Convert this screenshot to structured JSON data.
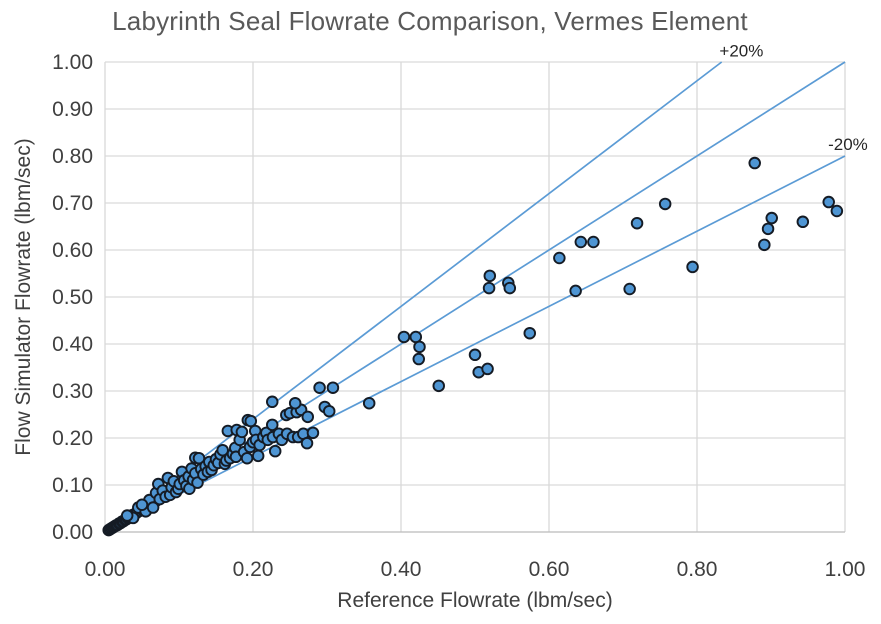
{
  "chart_data": {
    "type": "scatter",
    "title": "Labyrinth Seal Flowrate Comparison, Vermes Element",
    "xlabel": "Reference Flowrate (lbm/sec)",
    "ylabel": "Flow Simulator Flowrate (lbm/sec)",
    "xlim": [
      0.0,
      1.0
    ],
    "ylim": [
      0.0,
      1.0
    ],
    "xticks": [
      "0.00",
      "0.20",
      "0.40",
      "0.60",
      "0.80",
      "1.00"
    ],
    "yticks": [
      "0.00",
      "0.10",
      "0.20",
      "0.30",
      "0.40",
      "0.50",
      "0.60",
      "0.70",
      "0.80",
      "0.90",
      "1.00"
    ],
    "grid": true,
    "legend": "none",
    "colors": {
      "grid": "#d9d9d9",
      "axis": "#bfbfbf",
      "line": "#5b9bd5",
      "marker_fill": "#4e95d3",
      "marker_stroke": "#151b24",
      "tick_text": "#404040",
      "title_text": "#595959",
      "annotation_text": "#262626"
    },
    "reference_lines": [
      {
        "name": "plus-20pct",
        "slope": 1.2,
        "label": "+20%"
      },
      {
        "name": "one-to-one",
        "slope": 1.0,
        "label": ""
      },
      {
        "name": "minus-20pct",
        "slope": 0.8,
        "label": "-20%"
      }
    ],
    "annotations": [
      {
        "text": "+20%",
        "x": 0.86,
        "y": 1.012,
        "anchor": "middle"
      },
      {
        "text": "-20%",
        "x": 1.004,
        "y": 0.813,
        "anchor": "middle"
      }
    ],
    "series": [
      {
        "name": "flowrate-comparison",
        "points": [
          [
            0.005,
            0.004
          ],
          [
            0.007,
            0.006
          ],
          [
            0.009,
            0.008
          ],
          [
            0.011,
            0.01
          ],
          [
            0.013,
            0.012
          ],
          [
            0.015,
            0.014
          ],
          [
            0.017,
            0.015
          ],
          [
            0.019,
            0.018
          ],
          [
            0.021,
            0.019
          ],
          [
            0.023,
            0.022
          ],
          [
            0.025,
            0.023
          ],
          [
            0.027,
            0.026
          ],
          [
            0.029,
            0.027
          ],
          [
            0.031,
            0.03
          ],
          [
            0.033,
            0.031
          ],
          [
            0.035,
            0.034
          ],
          [
            0.037,
            0.036
          ],
          [
            0.039,
            0.037
          ],
          [
            0.042,
            0.04
          ],
          [
            0.044,
            0.043
          ],
          [
            0.047,
            0.045
          ],
          [
            0.05,
            0.048
          ],
          [
            0.053,
            0.051
          ],
          [
            0.056,
            0.054
          ],
          [
            0.059,
            0.057
          ],
          [
            0.062,
            0.059
          ],
          [
            0.065,
            0.062
          ],
          [
            0.068,
            0.065
          ],
          [
            0.045,
            0.052
          ],
          [
            0.055,
            0.044
          ],
          [
            0.06,
            0.068
          ],
          [
            0.038,
            0.03
          ],
          [
            0.03,
            0.035
          ],
          [
            0.05,
            0.058
          ],
          [
            0.065,
            0.052
          ],
          [
            0.069,
            0.083
          ],
          [
            0.072,
            0.102
          ],
          [
            0.074,
            0.07
          ],
          [
            0.078,
            0.088
          ],
          [
            0.082,
            0.075
          ],
          [
            0.085,
            0.115
          ],
          [
            0.088,
            0.079
          ],
          [
            0.09,
            0.095
          ],
          [
            0.093,
            0.108
          ],
          [
            0.096,
            0.085
          ],
          [
            0.099,
            0.092
          ],
          [
            0.101,
            0.102
          ],
          [
            0.104,
            0.128
          ],
          [
            0.107,
            0.11
          ],
          [
            0.11,
            0.098
          ],
          [
            0.113,
            0.118
          ],
          [
            0.114,
            0.092
          ],
          [
            0.117,
            0.135
          ],
          [
            0.119,
            0.111
          ],
          [
            0.122,
            0.158
          ],
          [
            0.122,
            0.125
          ],
          [
            0.125,
            0.105
          ],
          [
            0.127,
            0.157
          ],
          [
            0.13,
            0.134
          ],
          [
            0.133,
            0.122
          ],
          [
            0.136,
            0.14
          ],
          [
            0.139,
            0.128
          ],
          [
            0.141,
            0.149
          ],
          [
            0.144,
            0.132
          ],
          [
            0.147,
            0.142
          ],
          [
            0.15,
            0.155
          ],
          [
            0.153,
            0.147
          ],
          [
            0.156,
            0.165
          ],
          [
            0.159,
            0.174
          ],
          [
            0.162,
            0.145
          ],
          [
            0.164,
            0.152
          ],
          [
            0.166,
            0.215
          ],
          [
            0.169,
            0.157
          ],
          [
            0.173,
            0.166
          ],
          [
            0.176,
            0.179
          ],
          [
            0.177,
            0.16
          ],
          [
            0.178,
            0.217
          ],
          [
            0.182,
            0.196
          ],
          [
            0.185,
            0.213
          ],
          [
            0.188,
            0.17
          ],
          [
            0.192,
            0.157
          ],
          [
            0.193,
            0.238
          ],
          [
            0.196,
            0.181
          ],
          [
            0.197,
            0.236
          ],
          [
            0.2,
            0.191
          ],
          [
            0.203,
            0.215
          ],
          [
            0.204,
            0.196
          ],
          [
            0.207,
            0.162
          ],
          [
            0.209,
            0.185
          ],
          [
            0.214,
            0.202
          ],
          [
            0.218,
            0.211
          ],
          [
            0.22,
            0.196
          ],
          [
            0.226,
            0.228
          ],
          [
            0.227,
            0.202
          ],
          [
            0.23,
            0.172
          ],
          [
            0.235,
            0.209
          ],
          [
            0.239,
            0.196
          ],
          [
            0.245,
            0.249
          ],
          [
            0.246,
            0.209
          ],
          [
            0.25,
            0.253
          ],
          [
            0.254,
            0.202
          ],
          [
            0.259,
            0.255
          ],
          [
            0.261,
            0.202
          ],
          [
            0.265,
            0.26
          ],
          [
            0.268,
            0.209
          ],
          [
            0.273,
            0.189
          ],
          [
            0.274,
            0.245
          ],
          [
            0.281,
            0.211
          ],
          [
            0.226,
            0.277
          ],
          [
            0.257,
            0.274
          ],
          [
            0.29,
            0.307
          ],
          [
            0.308,
            0.307
          ],
          [
            0.297,
            0.266
          ],
          [
            0.303,
            0.257
          ],
          [
            0.357,
            0.274
          ],
          [
            0.404,
            0.415
          ],
          [
            0.42,
            0.415
          ],
          [
            0.425,
            0.394
          ],
          [
            0.424,
            0.368
          ],
          [
            0.451,
            0.311
          ],
          [
            0.5,
            0.377
          ],
          [
            0.505,
            0.34
          ],
          [
            0.517,
            0.347
          ],
          [
            0.519,
            0.519
          ],
          [
            0.52,
            0.545
          ],
          [
            0.545,
            0.53
          ],
          [
            0.547,
            0.519
          ],
          [
            0.574,
            0.423
          ],
          [
            0.614,
            0.583
          ],
          [
            0.636,
            0.513
          ],
          [
            0.643,
            0.617
          ],
          [
            0.66,
            0.617
          ],
          [
            0.709,
            0.517
          ],
          [
            0.719,
            0.657
          ],
          [
            0.757,
            0.698
          ],
          [
            0.794,
            0.564
          ],
          [
            0.878,
            0.785
          ],
          [
            0.891,
            0.611
          ],
          [
            0.896,
            0.645
          ],
          [
            0.901,
            0.668
          ],
          [
            0.943,
            0.66
          ],
          [
            0.978,
            0.702
          ],
          [
            0.989,
            0.683
          ]
        ]
      }
    ]
  }
}
